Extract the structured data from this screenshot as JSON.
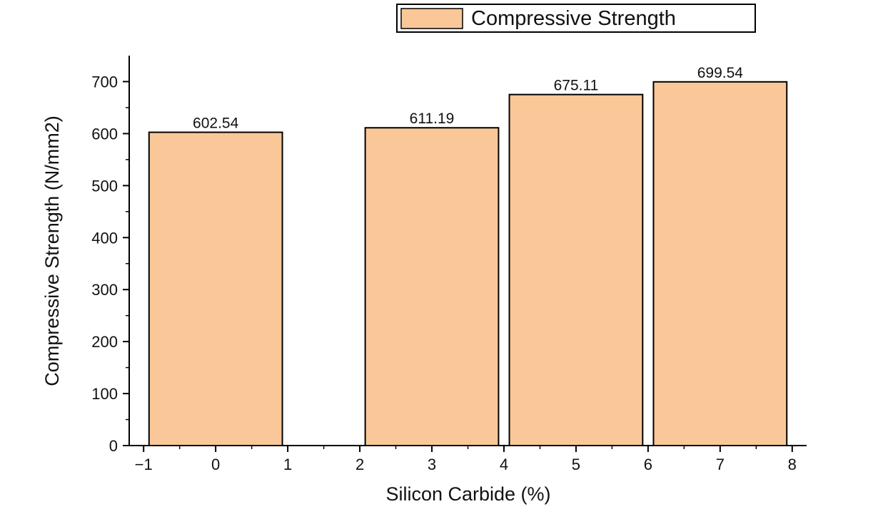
{
  "chart_data": {
    "type": "bar",
    "title": "",
    "xlabel": "Silicon Carbide (%)",
    "ylabel": "Compressive Strength (N/mm2)",
    "x": [
      0,
      3,
      5,
      7
    ],
    "series": [
      {
        "name": "Compressive Strength",
        "values": [
          602.54,
          611.19,
          675.11,
          699.54
        ]
      }
    ],
    "data_labels": [
      "602.54",
      "611.19",
      "675.11",
      "699.54"
    ],
    "bar_width": 1.85,
    "xlim": [
      -1.2,
      8.2
    ],
    "ylim": [
      0,
      750
    ],
    "xticks": [
      -1,
      0,
      1,
      2,
      3,
      4,
      5,
      6,
      7,
      8
    ],
    "xtick_labels": [
      "−1",
      "0",
      "1",
      "2",
      "3",
      "4",
      "5",
      "6",
      "7",
      "8"
    ],
    "yticks": [
      0,
      100,
      200,
      300,
      400,
      500,
      600,
      700
    ],
    "ytick_labels": [
      "0",
      "100",
      "200",
      "300",
      "400",
      "500",
      "600",
      "700"
    ],
    "grid": false,
    "legend_position": "top",
    "bar_color": "#FAC898",
    "edge_color": "#000000"
  }
}
